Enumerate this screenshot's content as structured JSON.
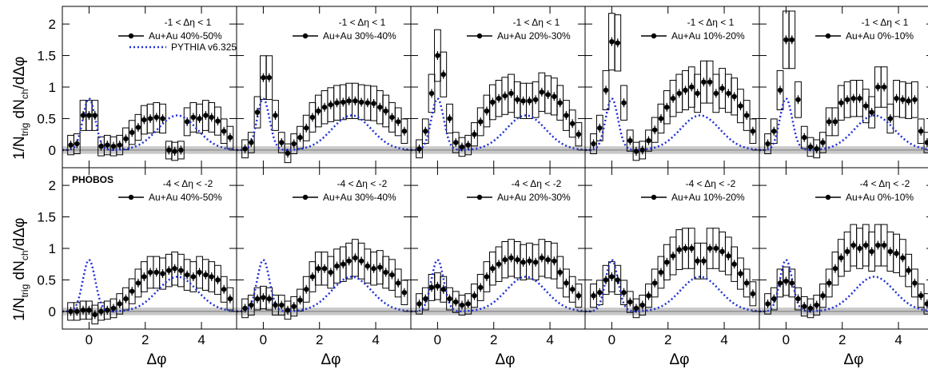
{
  "figure": {
    "y_title_main": "1/N",
    "y_title_sub": "trig",
    "y_title_mid": " dN",
    "y_title_sub2": "ch",
    "y_title_tail": "/dΔφ",
    "x_title": "Δφ",
    "experiment_label": "PHOBOS",
    "pythia_label": "PYTHIA v6.325"
  },
  "colors": {
    "data": "#000000",
    "pythia": "#1f2fd6",
    "band": "#c8c8c8",
    "systematic": "#000000"
  },
  "chart_data": [
    {
      "type": "line",
      "row": 0,
      "col": 0,
      "eta_range": "-1 < Δη < 1",
      "series": [
        {
          "name": "Au+Au 40%-50%",
          "x": [
            -0.65,
            -0.43,
            -0.21,
            0,
            0.21,
            0.43,
            0.65,
            0.87,
            1.09,
            1.31,
            1.53,
            1.75,
            1.96,
            2.18,
            2.4,
            2.62,
            2.84,
            3.05,
            3.27,
            3.49,
            3.71,
            3.93,
            4.15,
            4.36,
            4.58,
            4.8,
            5.02
          ],
          "y": [
            0.08,
            0.1,
            0.55,
            0.55,
            0.55,
            0.06,
            0.08,
            0.06,
            0.08,
            0.18,
            0.28,
            0.36,
            0.48,
            0.5,
            0.52,
            0.5,
            0.0,
            -0.02,
            0.0,
            0.45,
            0.52,
            0.5,
            0.55,
            0.52,
            0.46,
            0.3,
            0.2
          ]
        },
        {
          "name": "PYTHIA v6.325",
          "x": [],
          "y": []
        }
      ]
    },
    {
      "type": "line",
      "row": 0,
      "col": 1,
      "eta_range": "-1 < Δη < 1",
      "series": [
        {
          "name": "Au+Au 30%-40%",
          "x": [
            -0.65,
            -0.43,
            -0.21,
            0,
            0.21,
            0.43,
            0.65,
            0.87,
            1.09,
            1.31,
            1.53,
            1.75,
            1.96,
            2.18,
            2.4,
            2.62,
            2.84,
            3.05,
            3.27,
            3.49,
            3.71,
            3.93,
            4.15,
            4.36,
            4.58,
            4.8,
            5.02
          ],
          "y": [
            0.02,
            0.12,
            0.6,
            1.15,
            1.15,
            0.55,
            0.12,
            -0.05,
            0.1,
            0.2,
            0.35,
            0.52,
            0.62,
            0.68,
            0.72,
            0.75,
            0.76,
            0.78,
            0.78,
            0.76,
            0.75,
            0.74,
            0.68,
            0.62,
            0.52,
            0.45,
            0.3
          ]
        }
      ]
    },
    {
      "type": "line",
      "row": 0,
      "col": 2,
      "eta_range": "-1 < Δη < 1",
      "series": [
        {
          "name": "Au+Au 20%-30%",
          "x": [
            -0.65,
            -0.43,
            -0.21,
            0,
            0.21,
            0.43,
            0.65,
            0.87,
            1.09,
            1.31,
            1.53,
            1.75,
            1.96,
            2.18,
            2.4,
            2.62,
            2.84,
            3.05,
            3.27,
            3.49,
            3.71,
            3.93,
            4.15,
            4.36,
            4.58,
            4.8,
            5.02
          ],
          "y": [
            0.02,
            0.3,
            0.9,
            1.5,
            1.2,
            0.5,
            0.12,
            0.05,
            0.08,
            0.25,
            0.45,
            0.62,
            0.76,
            0.82,
            0.86,
            0.9,
            0.8,
            0.78,
            0.78,
            0.8,
            0.92,
            0.88,
            0.85,
            0.75,
            0.55,
            0.42,
            0.25
          ]
        }
      ]
    },
    {
      "type": "line",
      "row": 0,
      "col": 3,
      "eta_range": "-1 < Δη < 1",
      "series": [
        {
          "name": "Au+Au 10%-20%",
          "x": [
            -0.65,
            -0.43,
            -0.21,
            0,
            0.21,
            0.43,
            0.65,
            0.87,
            1.09,
            1.31,
            1.53,
            1.75,
            1.96,
            2.18,
            2.4,
            2.62,
            2.84,
            3.05,
            3.27,
            3.49,
            3.71,
            3.93,
            4.15,
            4.36,
            4.58,
            4.8,
            5.02
          ],
          "y": [
            0.1,
            0.35,
            0.95,
            1.72,
            1.7,
            0.75,
            0.15,
            -0.02,
            0.0,
            0.15,
            0.32,
            0.5,
            0.68,
            0.82,
            0.9,
            0.95,
            1.0,
            0.9,
            1.08,
            1.08,
            0.9,
            0.98,
            0.9,
            0.85,
            0.7,
            0.55,
            0.3
          ]
        }
      ]
    },
    {
      "type": "line",
      "row": 0,
      "col": 4,
      "eta_range": "-1 < Δη < 1",
      "series": [
        {
          "name": "Au+Au 0%-10%",
          "x": [
            -0.65,
            -0.43,
            -0.21,
            0,
            0.21,
            0.43,
            0.65,
            0.87,
            1.09,
            1.31,
            1.53,
            1.75,
            1.96,
            2.18,
            2.4,
            2.62,
            2.84,
            3.05,
            3.27,
            3.49,
            3.71,
            3.93,
            4.15,
            4.36,
            4.58,
            4.8,
            5.02
          ],
          "y": [
            0.1,
            0.3,
            0.95,
            1.75,
            1.75,
            0.8,
            0.2,
            0.05,
            0.02,
            0.12,
            0.45,
            0.45,
            0.75,
            0.8,
            0.82,
            0.82,
            0.7,
            0.6,
            1.0,
            1.0,
            0.5,
            0.82,
            0.8,
            0.78,
            0.8,
            0.3,
            0.12
          ]
        }
      ]
    },
    {
      "type": "line",
      "row": 1,
      "col": 0,
      "eta_range": "-4 < Δη < -2",
      "series": [
        {
          "name": "Au+Au 40%-50%",
          "x": [
            -0.65,
            -0.43,
            -0.21,
            0,
            0.21,
            0.43,
            0.65,
            0.87,
            1.09,
            1.31,
            1.53,
            1.75,
            1.96,
            2.18,
            2.4,
            2.62,
            2.84,
            3.05,
            3.27,
            3.49,
            3.71,
            3.93,
            4.15,
            4.36,
            4.58,
            4.8,
            5.02
          ],
          "y": [
            0.0,
            0.0,
            0.02,
            0.02,
            -0.05,
            0.0,
            0.02,
            0.05,
            0.12,
            0.2,
            0.32,
            0.45,
            0.55,
            0.62,
            0.62,
            0.6,
            0.65,
            0.68,
            0.65,
            0.58,
            0.55,
            0.62,
            0.58,
            0.55,
            0.5,
            0.35,
            0.2
          ]
        }
      ]
    },
    {
      "type": "line",
      "row": 1,
      "col": 1,
      "eta_range": "-4 < Δη < -2",
      "series": [
        {
          "name": "Au+Au 30%-40%",
          "x": [
            -0.65,
            -0.43,
            -0.21,
            0,
            0.21,
            0.43,
            0.65,
            0.87,
            1.09,
            1.31,
            1.53,
            1.75,
            1.96,
            2.18,
            2.4,
            2.62,
            2.84,
            3.05,
            3.27,
            3.49,
            3.71,
            3.93,
            4.15,
            4.36,
            4.58,
            4.8,
            5.02
          ],
          "y": [
            0.05,
            0.1,
            0.2,
            0.22,
            0.2,
            0.1,
            0.1,
            0.02,
            0.08,
            0.18,
            0.35,
            0.55,
            0.68,
            0.68,
            0.62,
            0.72,
            0.75,
            0.8,
            0.85,
            0.8,
            0.72,
            0.68,
            0.7,
            0.62,
            0.58,
            0.45,
            0.3
          ]
        }
      ]
    },
    {
      "type": "line",
      "row": 1,
      "col": 2,
      "eta_range": "-4 < Δη < -2",
      "series": [
        {
          "name": "Au+Au 20%-30%",
          "x": [
            -0.65,
            -0.43,
            -0.21,
            0,
            0.21,
            0.43,
            0.65,
            0.87,
            1.09,
            1.31,
            1.53,
            1.75,
            1.96,
            2.18,
            2.4,
            2.62,
            2.84,
            3.05,
            3.27,
            3.49,
            3.71,
            3.93,
            4.15,
            4.36,
            4.58,
            4.8,
            5.02
          ],
          "y": [
            0.12,
            0.2,
            0.38,
            0.4,
            0.35,
            0.2,
            0.15,
            0.1,
            0.12,
            0.25,
            0.38,
            0.55,
            0.68,
            0.75,
            0.82,
            0.85,
            0.82,
            0.78,
            0.8,
            0.78,
            0.85,
            0.82,
            0.8,
            0.62,
            0.45,
            0.35,
            0.25
          ]
        }
      ]
    },
    {
      "type": "line",
      "row": 1,
      "col": 3,
      "eta_range": "-4 < Δη < -2",
      "series": [
        {
          "name": "Au+Au 10%-20%",
          "x": [
            -0.65,
            -0.43,
            -0.21,
            0,
            0.21,
            0.43,
            0.65,
            0.87,
            1.09,
            1.31,
            1.53,
            1.75,
            1.96,
            2.18,
            2.4,
            2.62,
            2.84,
            3.05,
            3.27,
            3.49,
            3.71,
            3.93,
            4.15,
            4.36,
            4.58,
            4.8,
            5.02
          ],
          "y": [
            0.25,
            0.3,
            0.5,
            0.55,
            0.5,
            0.3,
            0.15,
            0.05,
            0.1,
            0.25,
            0.45,
            0.62,
            0.78,
            0.88,
            0.98,
            1.0,
            1.0,
            0.8,
            0.8,
            1.0,
            1.0,
            0.95,
            0.88,
            0.75,
            0.6,
            0.45,
            0.28
          ]
        }
      ]
    },
    {
      "type": "line",
      "row": 1,
      "col": 4,
      "eta_range": "-4 < Δη < -2",
      "series": [
        {
          "name": "Au+Au 0%-10%",
          "x": [
            -0.65,
            -0.43,
            -0.21,
            0,
            0.21,
            0.43,
            0.65,
            0.87,
            1.09,
            1.31,
            1.53,
            1.75,
            1.96,
            2.18,
            2.4,
            2.62,
            2.84,
            3.05,
            3.27,
            3.49,
            3.71,
            3.93,
            4.15,
            4.36,
            4.58,
            4.8,
            5.02
          ],
          "y": [
            0.12,
            0.2,
            0.45,
            0.48,
            0.45,
            0.2,
            0.08,
            0.05,
            0.1,
            0.25,
            0.45,
            0.68,
            0.85,
            0.95,
            1.05,
            1.0,
            1.05,
            0.95,
            1.05,
            1.05,
            0.95,
            0.92,
            0.85,
            0.65,
            0.45,
            0.25,
            0.12
          ]
        }
      ]
    }
  ],
  "axes": {
    "xlim": [
      -0.95,
      5.25
    ],
    "ylim": [
      -0.28,
      2.28
    ],
    "x_ticks": [
      "0",
      "2",
      "4"
    ],
    "y_ticks": [
      "0",
      "0.5",
      "1",
      "1.5",
      "2"
    ]
  }
}
